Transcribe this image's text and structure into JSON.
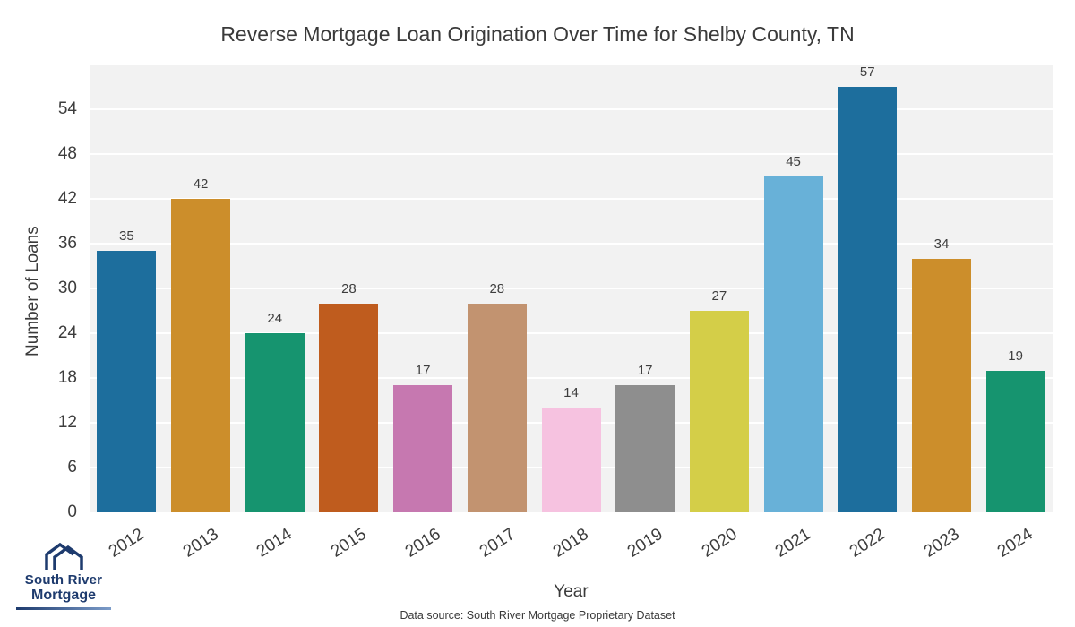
{
  "chart_data": {
    "type": "bar",
    "title": "Reverse Mortgage Loan Origination Over Time for Shelby County, TN",
    "xlabel": "Year",
    "ylabel": "Number of Loans",
    "categories": [
      "2012",
      "2013",
      "2014",
      "2015",
      "2016",
      "2017",
      "2018",
      "2019",
      "2020",
      "2021",
      "2022",
      "2023",
      "2024"
    ],
    "values": [
      35,
      42,
      24,
      28,
      17,
      28,
      14,
      17,
      27,
      45,
      57,
      34,
      19
    ],
    "yticks": [
      0,
      6,
      12,
      18,
      24,
      30,
      36,
      42,
      48,
      54
    ],
    "ylim": [
      0,
      59.9
    ],
    "grid": true,
    "legend": false,
    "plot_background": "#f2f2f2",
    "gridline_color": "#ffffff",
    "bar_colors": [
      "#1d6e9d",
      "#cc8e2b",
      "#16946f",
      "#bf5c1e",
      "#c678b0",
      "#c29370",
      "#f6c2e0",
      "#8e8e8e",
      "#d4ce48",
      "#68b1d8",
      "#1d6e9d",
      "#cc8e2b",
      "#16946f"
    ]
  },
  "footer": {
    "data_source": "Data source: South River Mortgage Proprietary Dataset"
  },
  "logo": {
    "line1": "South River",
    "line2": "Mortgage",
    "color": "#1e3b6e"
  }
}
